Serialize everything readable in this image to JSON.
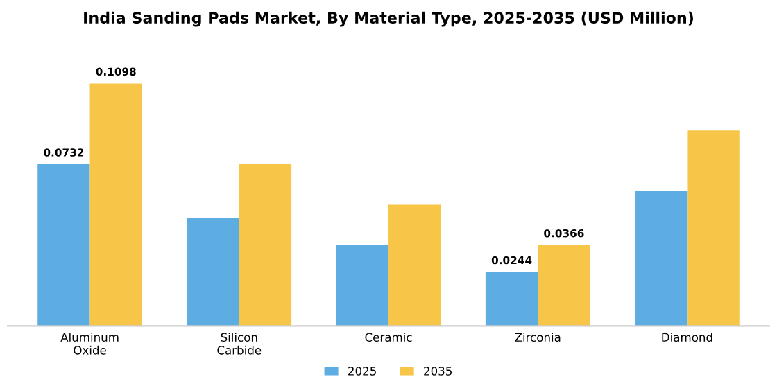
{
  "chart_data": {
    "type": "bar",
    "title": "India Sanding Pads Market, By Material Type, 2025-2035 (USD Million)",
    "categories": [
      "Aluminum\nOxide",
      "Silicon\nCarbide",
      "Ceramic",
      "Zirconia",
      "Diamond"
    ],
    "series": [
      {
        "name": "2025",
        "color": "#5dade2",
        "values": [
          0.0732,
          0.0488,
          0.0366,
          0.0244,
          0.061
        ],
        "value_labels": [
          "0.0732",
          null,
          null,
          "0.0244",
          null
        ]
      },
      {
        "name": "2035",
        "color": "#f7c548",
        "values": [
          0.1098,
          0.0732,
          0.0549,
          0.0366,
          0.0885
        ],
        "value_labels": [
          "0.1098",
          null,
          null,
          "0.0366",
          null
        ]
      }
    ],
    "legend": "bottom",
    "tick_labels": "x"
  }
}
